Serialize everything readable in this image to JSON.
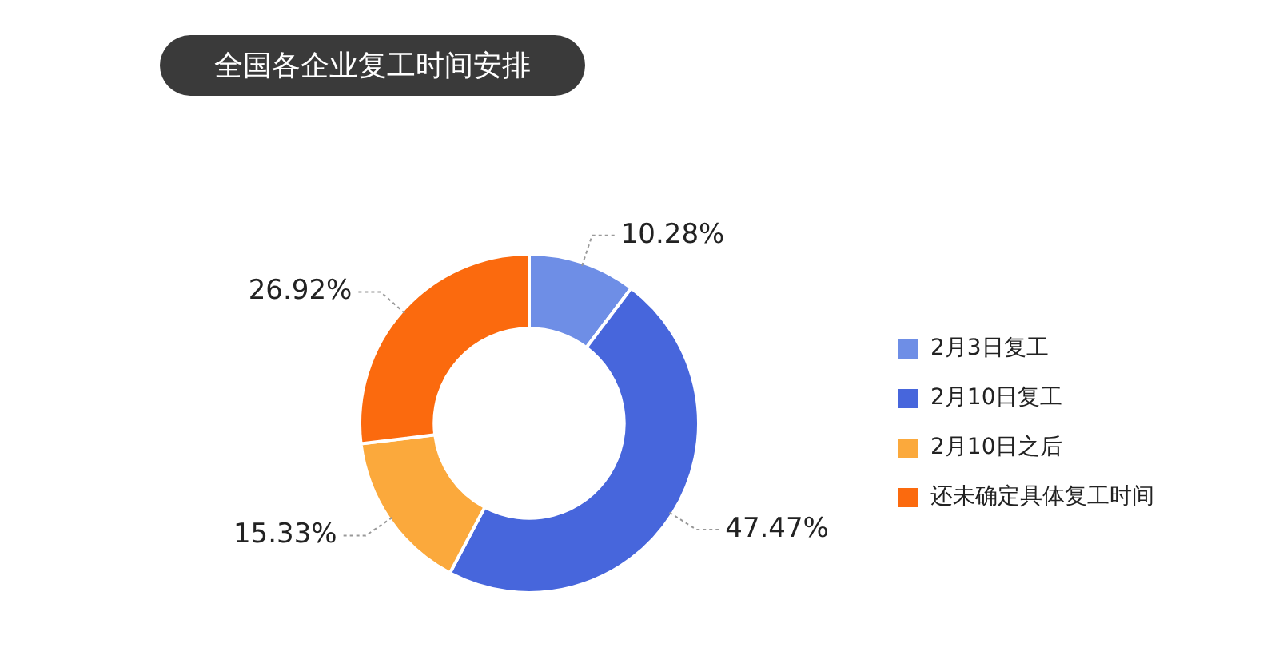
{
  "chart_data": {
    "type": "donut",
    "title": "全国各企业复工时间安排",
    "categories": [
      "2月3日复工",
      "2月10日复工",
      "2月10日之后",
      "还未确定具体复工时间"
    ],
    "values": [
      10.28,
      47.47,
      15.33,
      26.92
    ],
    "value_labels": [
      "10.28%",
      "47.47%",
      "15.33%",
      "26.92%"
    ],
    "colors": [
      "#6e8ee6",
      "#4766dc",
      "#fba93c",
      "#fb6a0e"
    ],
    "legend": "right"
  }
}
